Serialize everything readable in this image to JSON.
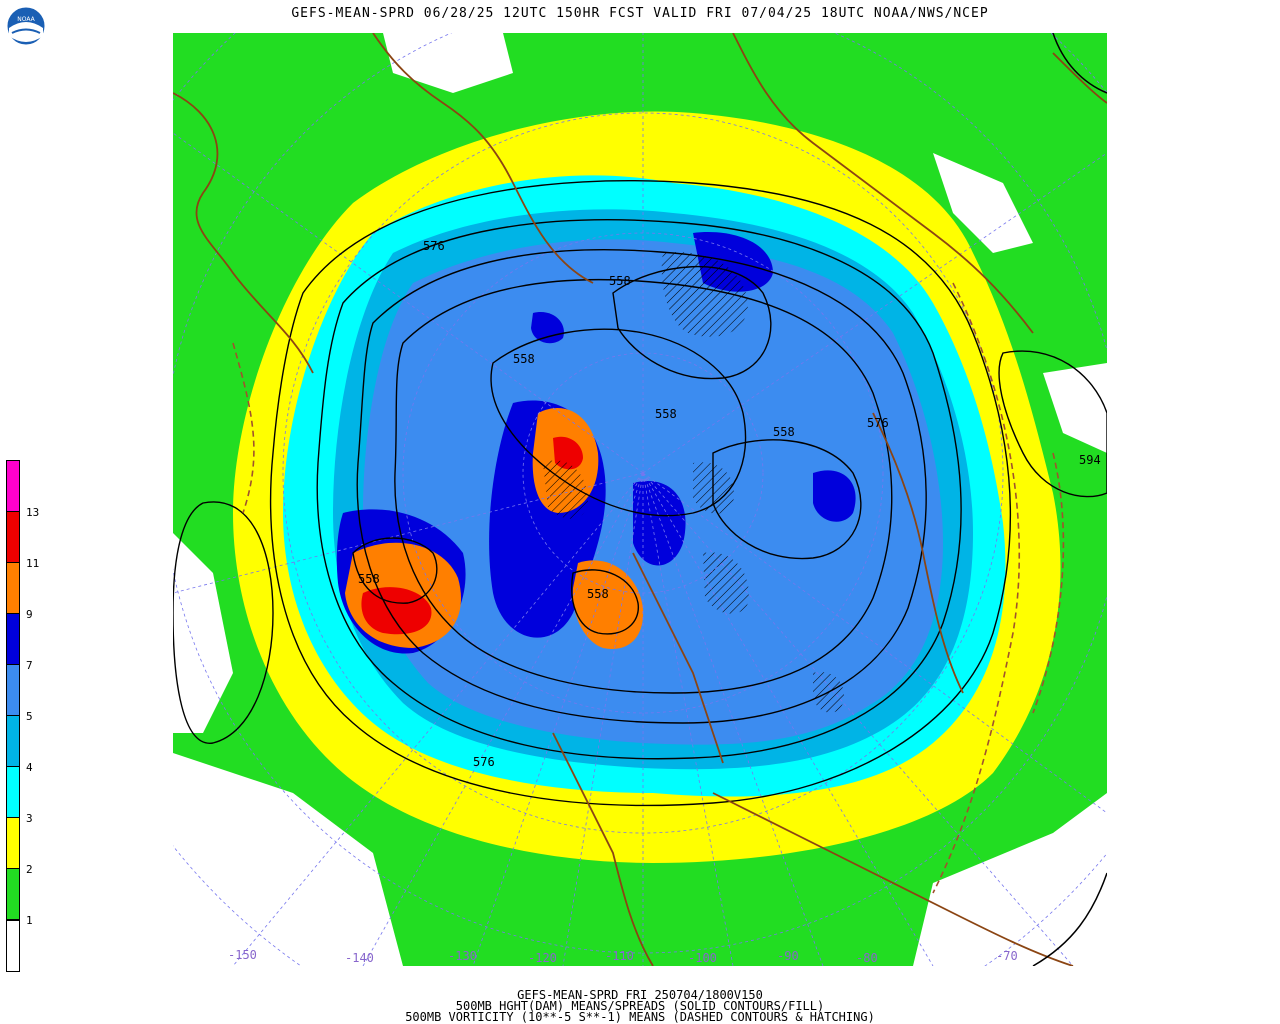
{
  "header": {
    "title": "GEFS-MEAN-SPRD 06/28/25 12UTC 150HR FCST VALID FRI 07/04/25 18UTC NOAA/NWS/NCEP",
    "logo_text": "NOAA"
  },
  "legend": {
    "labels": [
      "1",
      "2",
      "3",
      "4",
      "5",
      "7",
      "9",
      "11",
      "13"
    ],
    "colors": [
      "#ffffff",
      "#22dd22",
      "#ffff00",
      "#00ffff",
      "#00b4e6",
      "#3c8cf0",
      "#0000dc",
      "#ff7f00",
      "#ee0000",
      "#ff00cc"
    ]
  },
  "longitude_labels": [
    "-150",
    "-140",
    "-130",
    "-120",
    "-110",
    "-100",
    "-90",
    "-80",
    "-70"
  ],
  "height_labels": [
    "576",
    "558",
    "558",
    "558",
    "558",
    "576",
    "594",
    "558",
    "576",
    "558"
  ],
  "footer": {
    "line1": "GEFS-MEAN-SPRD FRI 250704/1800V150",
    "line2": "500MB HGHT(DAM) MEANS/SPREADS (SOLID CONTOURS/FILL)",
    "line3": "500MB VORTICITY (10**-5 S**-1) MEANS (DASHED CONTOURS & HATCHING)"
  }
}
